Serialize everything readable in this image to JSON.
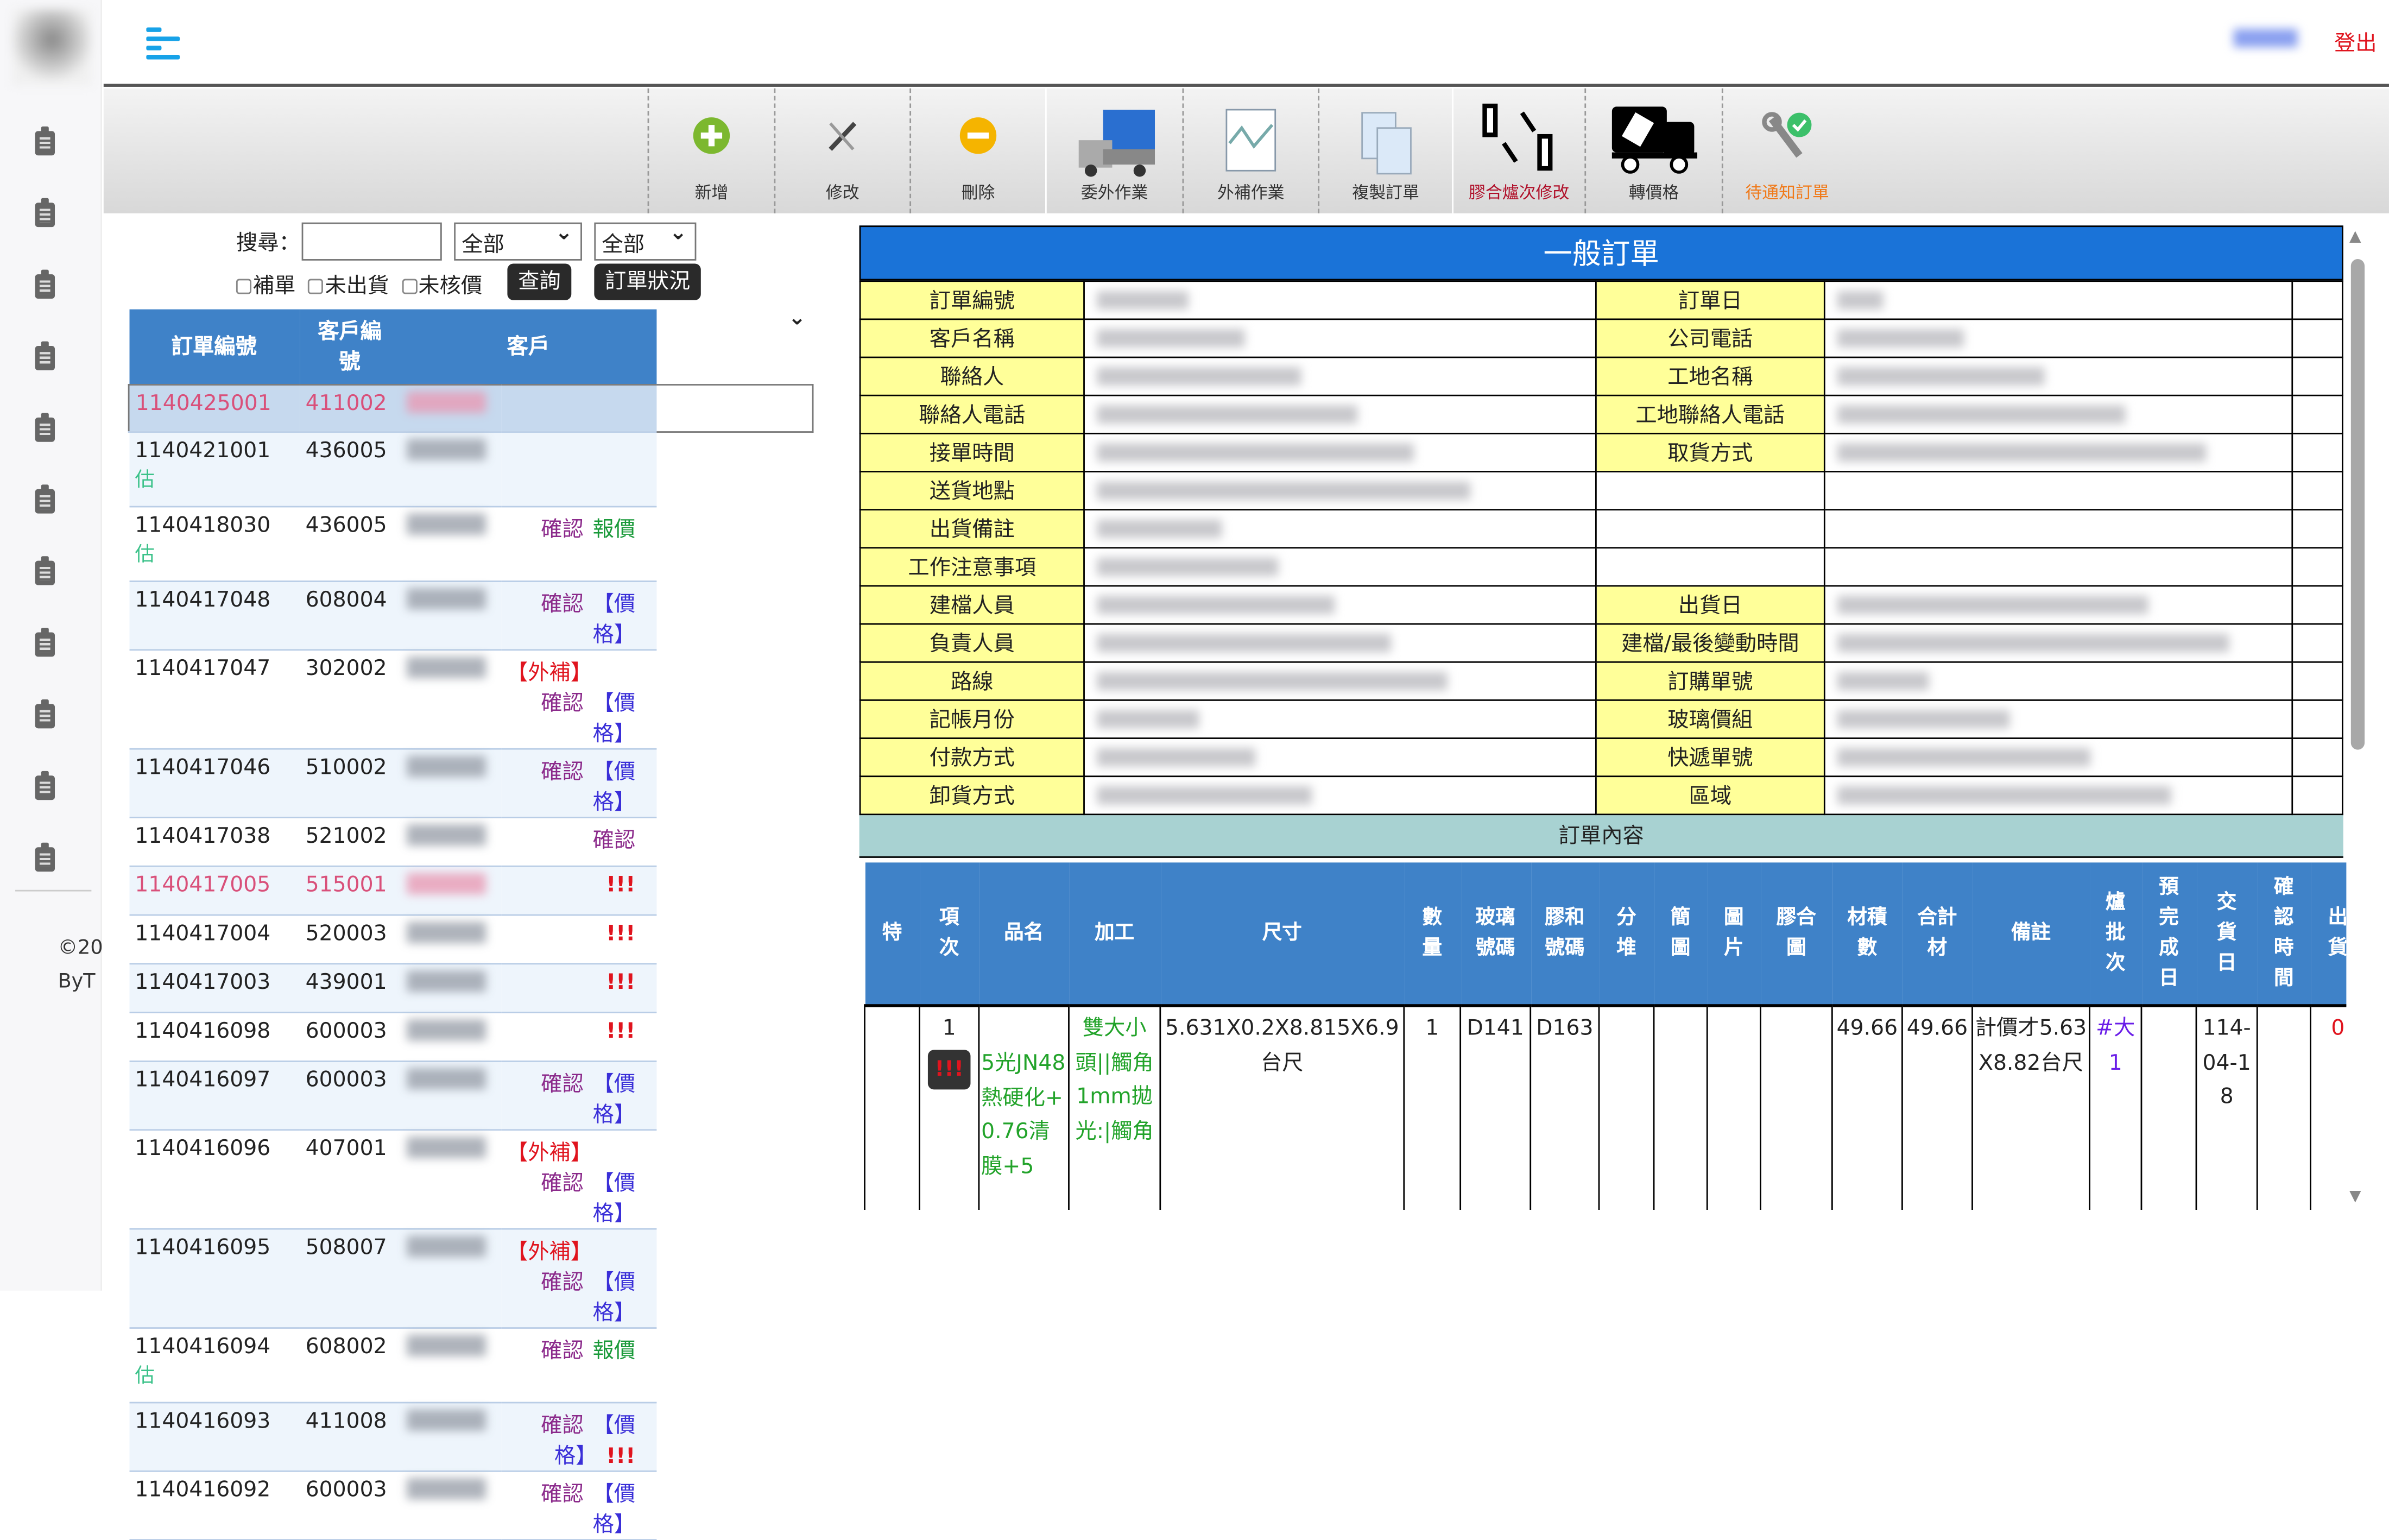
{
  "sidebar": {
    "icon_count": 11,
    "copyright": "©20",
    "by": "ByT"
  },
  "topbar": {
    "menu_icon": "hamburger-icon",
    "logout": "登出"
  },
  "toolbar": [
    {
      "label": "新增",
      "icon": "plus-circle-icon"
    },
    {
      "label": "修改",
      "icon": "tools-icon"
    },
    {
      "label": "刪除",
      "icon": "minus-circle-icon"
    },
    {
      "label": "委外作業",
      "icon": "truck-icon"
    },
    {
      "label": "外補作業",
      "icon": "document-chart-icon"
    },
    {
      "label": "複製訂單",
      "icon": "copy-document-icon"
    },
    {
      "label": "膠合爐次修改",
      "icon": "sort-arrows-icon",
      "color": "#b0102a"
    },
    {
      "label": "轉價格",
      "icon": "price-truck-icon"
    },
    {
      "label": "待通知訂單",
      "icon": "wrench-check-icon",
      "color": "#f07a1a"
    }
  ],
  "search": {
    "label": "搜尋：",
    "value": "",
    "select1": "全部",
    "select2": "全部",
    "checkboxes": [
      "補單",
      "未出貨",
      "未核價"
    ],
    "query_button": "查詢",
    "status_button": "訂單狀況"
  },
  "list": {
    "headers": [
      "訂單編號",
      "客戶編號",
      "客戶"
    ],
    "rows": [
      {
        "order": "1140425001",
        "cust": "411002",
        "pink": true,
        "selected": true,
        "est": "",
        "actions": []
      },
      {
        "order": "1140421001",
        "cust": "436005",
        "est": "估",
        "actions": []
      },
      {
        "order": "1140418030",
        "cust": "436005",
        "est": "估",
        "actions": [
          "確認",
          "報價"
        ]
      },
      {
        "order": "1140417048",
        "cust": "608004",
        "est": "",
        "actions": [
          "確認",
          "【價格】"
        ]
      },
      {
        "order": "1140417047",
        "cust": "302002",
        "est": "",
        "actions": [
          "【外補】",
          "確認",
          "【價格】"
        ]
      },
      {
        "order": "1140417046",
        "cust": "510002",
        "est": "",
        "actions": [
          "確認",
          "【價格】"
        ]
      },
      {
        "order": "1140417038",
        "cust": "521002",
        "est": "",
        "actions": [
          "確認"
        ]
      },
      {
        "order": "1140417005",
        "cust": "515001",
        "pink": true,
        "est": "",
        "actions": [
          "!!!"
        ]
      },
      {
        "order": "1140417004",
        "cust": "520003",
        "est": "",
        "actions": [
          "!!!"
        ]
      },
      {
        "order": "1140417003",
        "cust": "439001",
        "est": "",
        "actions": [
          "!!!"
        ]
      },
      {
        "order": "1140416098",
        "cust": "600003",
        "est": "",
        "actions": [
          "!!!"
        ]
      },
      {
        "order": "1140416097",
        "cust": "600003",
        "est": "",
        "actions": [
          "確認",
          "【價格】"
        ]
      },
      {
        "order": "1140416096",
        "cust": "407001",
        "est": "",
        "actions": [
          "【外補】",
          "確認",
          "【價格】"
        ]
      },
      {
        "order": "1140416095",
        "cust": "508007",
        "est": "",
        "actions": [
          "【外補】",
          "確認",
          "【價格】"
        ]
      },
      {
        "order": "1140416094",
        "cust": "608002",
        "est": "估",
        "actions": [
          "確認",
          "報價"
        ]
      },
      {
        "order": "1140416093",
        "cust": "411008",
        "est": "",
        "actions": [
          "確認",
          "【價格】",
          "!!!"
        ]
      },
      {
        "order": "1140416092",
        "cust": "600003",
        "est": "",
        "actions": [
          "確認",
          "【價格】"
        ]
      }
    ]
  },
  "form": {
    "title": "一般訂單",
    "rows": [
      [
        "訂單編號",
        "訂單日"
      ],
      [
        "客戶名稱",
        "公司電話"
      ],
      [
        "聯絡人",
        "工地名稱"
      ],
      [
        "聯絡人電話",
        "工地聯絡人電話"
      ],
      [
        "接單時間",
        "取貨方式"
      ],
      [
        "送貨地點",
        ""
      ],
      [
        "出貨備註",
        ""
      ],
      [
        "工作注意事項",
        ""
      ],
      [
        "建檔人員",
        "出貨日"
      ],
      [
        "負責人員",
        "建檔/最後變動時間"
      ],
      [
        "路線",
        "訂購單號"
      ],
      [
        "記帳月份",
        "玻璃價組"
      ],
      [
        "付款方式",
        "快遞單號"
      ],
      [
        "卸貨方式",
        "區域"
      ]
    ],
    "content_title": "訂單內容"
  },
  "detail": {
    "headers": [
      "特",
      "項次",
      "品名",
      "加工",
      "尺寸",
      "數量",
      "玻璃號碼",
      "膠和號碼",
      "分堆",
      "簡圖",
      "圖片",
      "膠合圖",
      "材積數",
      "合計材",
      "備註",
      "爐批次",
      "預完成日",
      "交貨日",
      "確認時間",
      "出貨"
    ],
    "row": {
      "特": "",
      "項次": "1",
      "badge": "!!!",
      "品名": "5光JN48熱硬化+0.76清膜+5",
      "加工": "雙大小頭||觸角1mm拋光:|觸角",
      "尺寸": "5.631X0.2X8.815X6.9台尺",
      "數量": "1",
      "玻璃號碼": "D141",
      "膠和號碼": "D163",
      "分堆": "",
      "簡圖": "",
      "圖片": "",
      "膠合圖": "",
      "材積數": "49.66",
      "合計材": "49.66",
      "備註": "計價才5.63X8.82台尺",
      "爐批次": "#大1",
      "預完成日": "",
      "交貨日": "114-04-18",
      "確認時間": "",
      "出貨": "0"
    }
  },
  "colors": {
    "header_blue": "#3f82c8",
    "title_blue": "#1a73d8",
    "label_yellow": "#ffff99",
    "logout_red": "#e0141e"
  }
}
